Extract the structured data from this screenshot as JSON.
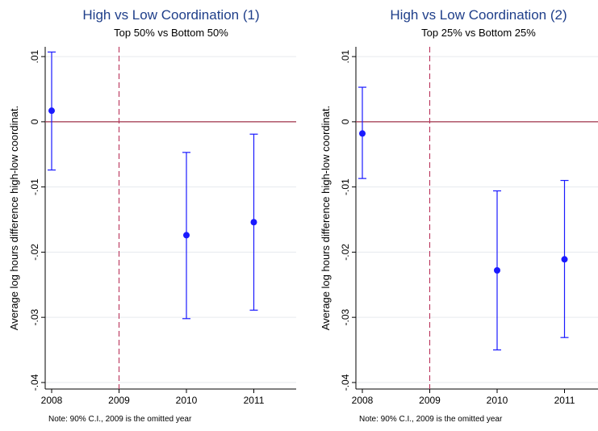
{
  "chart_data": [
    {
      "type": "errorbar",
      "title": "High vs Low Coordination (1)",
      "subtitle": "Top 50% vs Bottom 50%",
      "ylabel": "Average log hours difference high-low coordinat.",
      "xlabel": "",
      "note": "Note: 90% C.I., 2009 is the omitted year",
      "categories": [
        "2008",
        "2009",
        "2010",
        "2011"
      ],
      "x": [
        2008,
        2009,
        2010,
        2011
      ],
      "points": [
        {
          "x": 2008,
          "y": 0.0017,
          "lo": -0.0074,
          "hi": 0.0107
        },
        {
          "x": 2010,
          "y": -0.0174,
          "lo": -0.0302,
          "hi": -0.0047
        },
        {
          "x": 2011,
          "y": -0.0154,
          "lo": -0.0289,
          "hi": -0.0019
        }
      ],
      "ylim": [
        -0.041,
        0.0115
      ],
      "xlim": [
        2008,
        2011.6
      ],
      "yticks": [
        0.01,
        0,
        -0.01,
        -0.02,
        -0.03,
        -0.04
      ],
      "ytick_labels": [
        ".01",
        "0",
        "-.01",
        "-.02",
        "-.03",
        "-.04"
      ],
      "hline": 0,
      "vline": 2009,
      "grid": true,
      "colors": {
        "marker": "#1a1aff",
        "hline": "#a0324a",
        "vline": "#b8325a",
        "grid": "#e6eaee",
        "title": "#1f3f8a"
      }
    },
    {
      "type": "errorbar",
      "title": "High vs Low Coordination (2)",
      "subtitle": "Top 25% vs Bottom 25%",
      "ylabel": "Average log hours difference high-low coordinat.",
      "xlabel": "",
      "note": "Note: 90% C.I., 2009 is the omitted year",
      "categories": [
        "2008",
        "2009",
        "2010",
        "2011"
      ],
      "x": [
        2008,
        2009,
        2010,
        2011
      ],
      "points": [
        {
          "x": 2008,
          "y": -0.0018,
          "lo": -0.0087,
          "hi": 0.0053
        },
        {
          "x": 2010,
          "y": -0.0228,
          "lo": -0.035,
          "hi": -0.0106
        },
        {
          "x": 2011,
          "y": -0.0211,
          "lo": -0.0331,
          "hi": -0.009
        }
      ],
      "ylim": [
        -0.041,
        0.0115
      ],
      "xlim": [
        2008,
        2011.6
      ],
      "yticks": [
        0.01,
        0,
        -0.01,
        -0.02,
        -0.03,
        -0.04
      ],
      "ytick_labels": [
        ".01",
        "0",
        "-.01",
        "-.02",
        "-.03",
        "-.04"
      ],
      "hline": 0,
      "vline": 2009,
      "grid": true,
      "colors": {
        "marker": "#1a1aff",
        "hline": "#a0324a",
        "vline": "#b8325a",
        "grid": "#e6eaee",
        "title": "#1f3f8a"
      }
    }
  ]
}
